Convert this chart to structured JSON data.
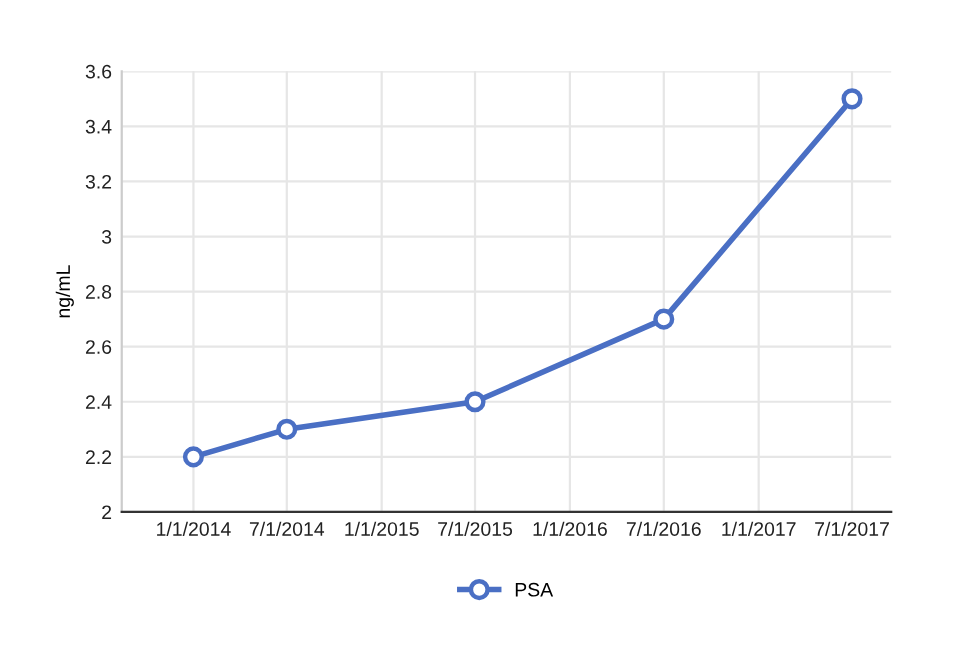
{
  "chart_data": {
    "type": "line",
    "ylabel": "ng/mL",
    "x": [
      "2014-01-01",
      "2014-07-01",
      "2015-07-01",
      "2016-07-01",
      "2017-07-01"
    ],
    "series": [
      {
        "name": "PSA",
        "color": "#4a6fc4",
        "values": [
          2.2,
          2.3,
          2.4,
          2.7,
          3.5
        ]
      }
    ],
    "xlim": [
      "2013-08-15",
      "2017-09-15"
    ],
    "xticks": [
      {
        "value": "2014-01-01",
        "label": "1/1/2014"
      },
      {
        "value": "2014-07-01",
        "label": "7/1/2014"
      },
      {
        "value": "2015-01-01",
        "label": "1/1/2015"
      },
      {
        "value": "2015-07-01",
        "label": "7/1/2015"
      },
      {
        "value": "2016-01-01",
        "label": "1/1/2016"
      },
      {
        "value": "2016-07-01",
        "label": "7/1/2016"
      },
      {
        "value": "2017-01-01",
        "label": "1/1/2017"
      },
      {
        "value": "2017-07-01",
        "label": "7/1/2017"
      }
    ],
    "ylim": [
      2,
      3.6
    ],
    "yticks": [
      2,
      2.2,
      2.4,
      2.6,
      2.8,
      3,
      3.2,
      3.4,
      3.6
    ],
    "grid": true,
    "legend": "bottom",
    "marker": "circle",
    "line_style": "solid"
  }
}
